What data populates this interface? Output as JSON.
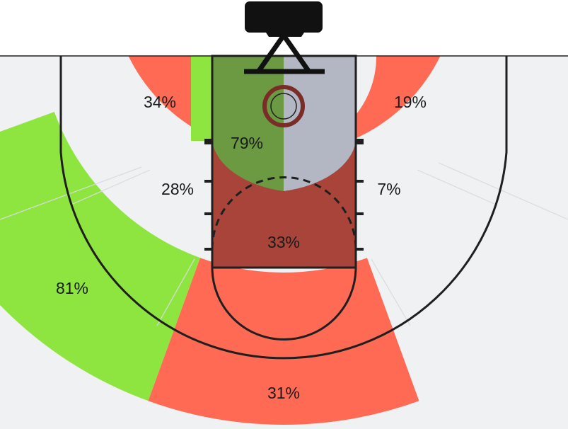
{
  "chart_data": {
    "type": "heatmap",
    "title": "",
    "colors": {
      "hot": "#8ee53f",
      "cold": "#ff6a55",
      "neutral": "#f0f1f3",
      "paint_left": "#6b9a43",
      "paint_right": "#b3b7c3",
      "paint_lower": "#a8443a",
      "lines": "#1f1f1f",
      "rim": "#7a2d26",
      "backboard": "#111111"
    },
    "zones": [
      {
        "id": "restricted-area",
        "label": "79%",
        "value": 79,
        "heat": "hot"
      },
      {
        "id": "paint-non-ra",
        "label": "33%",
        "value": 33,
        "heat": "cold"
      },
      {
        "id": "mid-left-baseline",
        "label": "34%",
        "value": 34,
        "heat": "cold"
      },
      {
        "id": "mid-right-baseline",
        "label": "19%",
        "value": 19,
        "heat": "cold"
      },
      {
        "id": "mid-left-wing",
        "label": "28%",
        "value": 28,
        "heat": "cold"
      },
      {
        "id": "mid-right-wing",
        "label": "7%",
        "value": 7,
        "heat": "cold"
      },
      {
        "id": "three-left-wing",
        "label": "81%",
        "value": 81,
        "heat": "hot"
      },
      {
        "id": "three-top",
        "label": "31%",
        "value": 31,
        "heat": "cold"
      },
      {
        "id": "three-left-corner",
        "label": "",
        "value": null,
        "heat": "neutral"
      },
      {
        "id": "three-right-corner",
        "label": "",
        "value": null,
        "heat": "neutral"
      },
      {
        "id": "three-right-wing",
        "label": "",
        "value": null,
        "heat": "neutral"
      },
      {
        "id": "long-mid-left",
        "label": "",
        "value": null,
        "heat": "neutral"
      },
      {
        "id": "long-mid-top",
        "label": "",
        "value": null,
        "heat": "neutral"
      },
      {
        "id": "long-mid-right",
        "label": "",
        "value": null,
        "heat": "neutral"
      }
    ]
  }
}
